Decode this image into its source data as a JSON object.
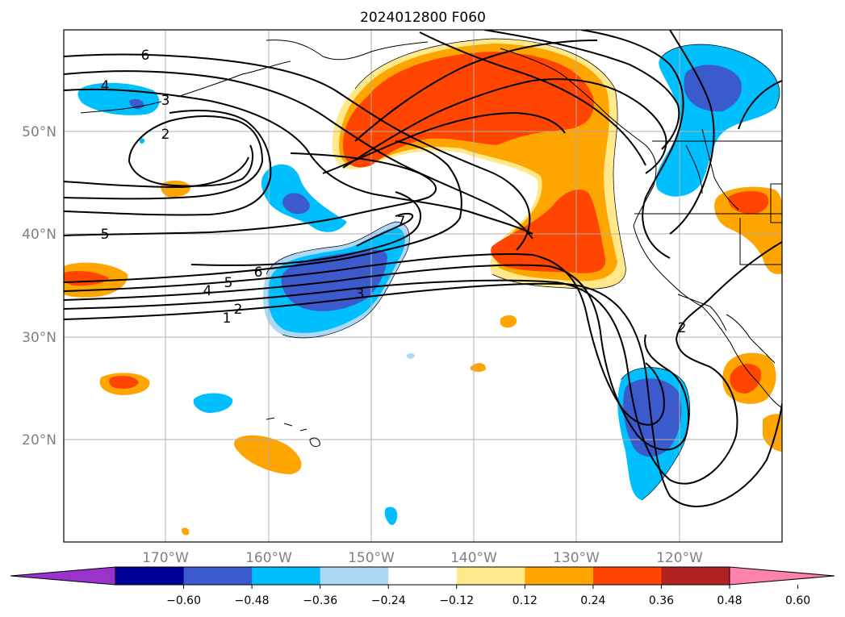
{
  "title": "2024012800 F060",
  "lat_labels": [
    "50°N",
    "40°N",
    "30°N",
    "20°N"
  ],
  "lon_labels": [
    "170°W",
    "160°W",
    "150°W",
    "140°W",
    "130°W",
    "120°W"
  ],
  "contour_labels": [
    "6",
    "4",
    "3",
    "2",
    "5",
    "6",
    "7",
    "5",
    "4",
    "2",
    "1",
    "3",
    "2"
  ],
  "colorbar": {
    "ticks": [
      "−0.60",
      "−0.48",
      "−0.36",
      "−0.24",
      "−0.12",
      "0.12",
      "0.24",
      "0.36",
      "0.48",
      "0.60"
    ],
    "colors": [
      "#9933cc",
      "#000099",
      "#3b5bcc",
      "#00bfff",
      "#add8f6",
      "#ffffff",
      "#ffe98a",
      "#ffa500",
      "#ff4500",
      "#b22222",
      "#ff82ab"
    ]
  },
  "colors": {
    "frame": "#000000",
    "grid": "#b0b0b0",
    "coast": "#000000"
  }
}
